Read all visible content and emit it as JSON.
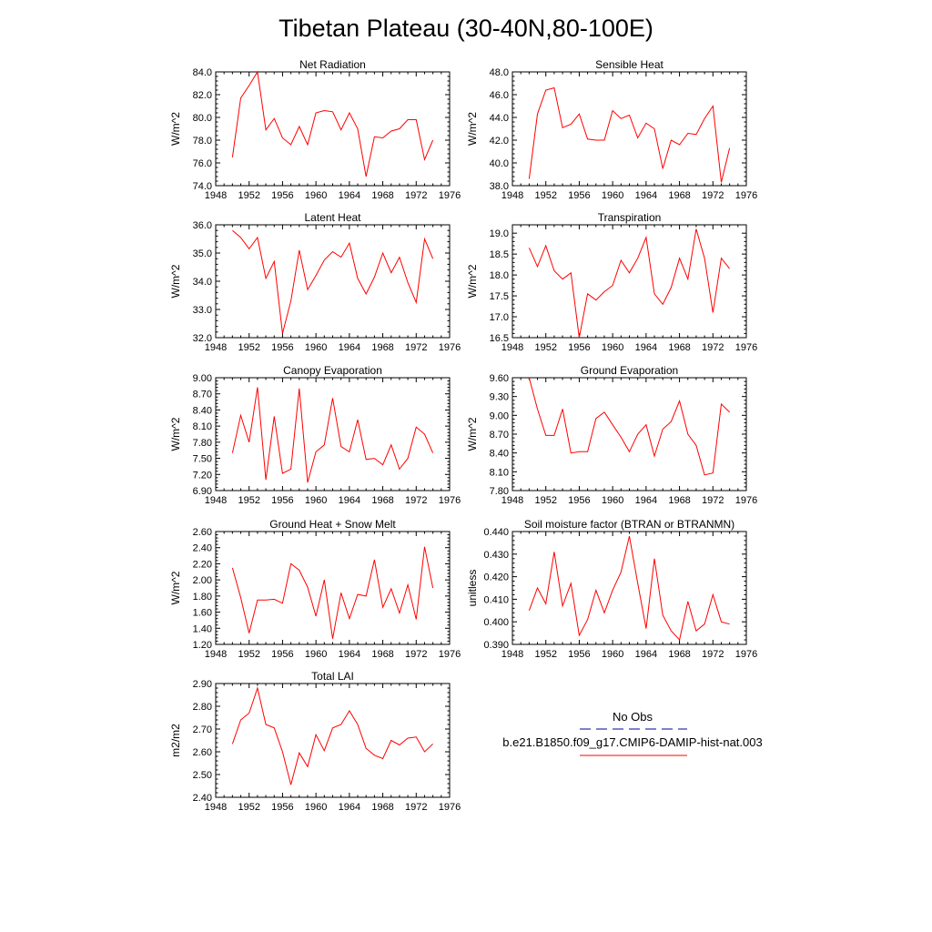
{
  "figure": {
    "title": "Tibetan Plateau (30-40N,80-100E)"
  },
  "legend": {
    "obs_label": "No Obs",
    "model_label": "b.e21.B1850.f09_g17.CMIP6-DAMIP-hist-nat.003",
    "obs_color": "#000099",
    "model_color": "#ff0000"
  },
  "chart_data": [
    {
      "type": "line",
      "title": "Net Radiation",
      "ylabel": "W/m^2",
      "xlim": [
        1948,
        1976
      ],
      "xticks": [
        1948,
        1952,
        1956,
        1960,
        1964,
        1968,
        1972,
        1976
      ],
      "ylim": [
        74.0,
        84.0
      ],
      "yticks": [
        "74.0",
        "76.0",
        "78.0",
        "80.0",
        "82.0",
        "84.0"
      ],
      "x": [
        1950,
        1951,
        1952,
        1953,
        1954,
        1955,
        1956,
        1957,
        1958,
        1959,
        1960,
        1961,
        1962,
        1963,
        1964,
        1965,
        1966,
        1967,
        1968,
        1969,
        1970,
        1971,
        1972,
        1973,
        1974
      ],
      "series": [
        {
          "values": [
            76.5,
            81.7,
            82.8,
            84.0,
            78.9,
            79.9,
            78.2,
            77.6,
            79.2,
            77.6,
            80.4,
            80.6,
            80.5,
            78.9,
            80.4,
            79.0,
            74.8,
            78.3,
            78.2,
            78.8,
            79.0,
            79.8,
            79.8,
            76.3,
            78.0
          ]
        }
      ]
    },
    {
      "type": "line",
      "title": "Sensible Heat",
      "ylabel": "W/m^2",
      "xlim": [
        1948,
        1976
      ],
      "xticks": [
        1948,
        1952,
        1956,
        1960,
        1964,
        1968,
        1972,
        1976
      ],
      "ylim": [
        38.0,
        48.0
      ],
      "yticks": [
        "38.0",
        "40.0",
        "42.0",
        "44.0",
        "46.0",
        "48.0"
      ],
      "x": [
        1950,
        1951,
        1952,
        1953,
        1954,
        1955,
        1956,
        1957,
        1958,
        1959,
        1960,
        1961,
        1962,
        1963,
        1964,
        1965,
        1966,
        1967,
        1968,
        1969,
        1970,
        1971,
        1972,
        1973,
        1974
      ],
      "series": [
        {
          "values": [
            38.6,
            44.3,
            46.4,
            46.6,
            43.1,
            43.4,
            44.3,
            42.1,
            42.0,
            42.0,
            44.6,
            43.9,
            44.2,
            42.2,
            43.5,
            43.0,
            39.5,
            42.0,
            41.6,
            42.6,
            42.5,
            43.9,
            45.0,
            38.3,
            41.3
          ]
        }
      ]
    },
    {
      "type": "line",
      "title": "Latent Heat",
      "ylabel": "W/m^2",
      "xlim": [
        1948,
        1976
      ],
      "xticks": [
        1948,
        1952,
        1956,
        1960,
        1964,
        1968,
        1972,
        1976
      ],
      "ylim": [
        32.0,
        36.0
      ],
      "yticks": [
        "32.0",
        "33.0",
        "34.0",
        "35.0",
        "36.0"
      ],
      "x": [
        1950,
        1951,
        1952,
        1953,
        1954,
        1955,
        1956,
        1957,
        1958,
        1959,
        1960,
        1961,
        1962,
        1963,
        1964,
        1965,
        1966,
        1967,
        1968,
        1969,
        1970,
        1971,
        1972,
        1973,
        1974
      ],
      "series": [
        {
          "values": [
            35.8,
            35.55,
            35.15,
            35.55,
            34.1,
            34.7,
            32.15,
            33.3,
            35.1,
            33.7,
            34.2,
            34.75,
            35.05,
            34.85,
            35.35,
            34.1,
            33.55,
            34.15,
            35.0,
            34.3,
            34.85,
            33.95,
            33.25,
            35.5,
            34.8
          ]
        }
      ]
    },
    {
      "type": "line",
      "title": "Transpiration",
      "ylabel": "W/m^2",
      "xlim": [
        1948,
        1976
      ],
      "xticks": [
        1948,
        1952,
        1956,
        1960,
        1964,
        1968,
        1972,
        1976
      ],
      "ylim": [
        16.5,
        19.2
      ],
      "yticks": [
        "16.5",
        "17.0",
        "17.5",
        "18.0",
        "18.5",
        "19.0"
      ],
      "ytickvalues": [
        16.5,
        17.0,
        17.5,
        18.0,
        18.5,
        19.0
      ],
      "x": [
        1950,
        1951,
        1952,
        1953,
        1954,
        1955,
        1956,
        1957,
        1958,
        1959,
        1960,
        1961,
        1962,
        1963,
        1964,
        1965,
        1966,
        1967,
        1968,
        1969,
        1970,
        1971,
        1972,
        1973,
        1974
      ],
      "series": [
        {
          "values": [
            18.65,
            18.2,
            18.7,
            18.1,
            17.9,
            18.05,
            16.5,
            17.55,
            17.4,
            17.6,
            17.75,
            18.35,
            18.05,
            18.4,
            18.9,
            17.55,
            17.3,
            17.7,
            18.4,
            17.9,
            19.1,
            18.4,
            17.1,
            18.4,
            18.15
          ]
        }
      ]
    },
    {
      "type": "line",
      "title": "Canopy Evaporation",
      "ylabel": "W/m^2",
      "xlim": [
        1948,
        1976
      ],
      "xticks": [
        1948,
        1952,
        1956,
        1960,
        1964,
        1968,
        1972,
        1976
      ],
      "ylim": [
        6.9,
        9.0
      ],
      "yticks": [
        "6.90",
        "7.20",
        "7.50",
        "7.80",
        "8.10",
        "8.40",
        "8.70",
        "9.00"
      ],
      "ytickvalues": [
        6.9,
        7.2,
        7.5,
        7.8,
        8.1,
        8.4,
        8.7,
        9.0
      ],
      "x": [
        1950,
        1951,
        1952,
        1953,
        1954,
        1955,
        1956,
        1957,
        1958,
        1959,
        1960,
        1961,
        1962,
        1963,
        1964,
        1965,
        1966,
        1967,
        1968,
        1969,
        1970,
        1971,
        1972,
        1973,
        1974
      ],
      "series": [
        {
          "values": [
            7.6,
            8.3,
            7.8,
            8.82,
            7.1,
            8.28,
            7.22,
            7.3,
            8.8,
            7.05,
            7.62,
            7.75,
            8.62,
            7.72,
            7.62,
            8.22,
            7.48,
            7.5,
            7.38,
            7.75,
            7.3,
            7.5,
            8.08,
            7.95,
            7.6
          ]
        }
      ]
    },
    {
      "type": "line",
      "title": "Ground Evaporation",
      "ylabel": "W/m^2",
      "xlim": [
        1948,
        1976
      ],
      "xticks": [
        1948,
        1952,
        1956,
        1960,
        1964,
        1968,
        1972,
        1976
      ],
      "ylim": [
        7.8,
        9.6
      ],
      "yticks": [
        "7.80",
        "8.10",
        "8.40",
        "8.70",
        "9.00",
        "9.30",
        "9.60"
      ],
      "ytickvalues": [
        7.8,
        8.1,
        8.4,
        8.7,
        9.0,
        9.3,
        9.6
      ],
      "x": [
        1950,
        1951,
        1952,
        1953,
        1954,
        1955,
        1956,
        1957,
        1958,
        1959,
        1960,
        1961,
        1962,
        1963,
        1964,
        1965,
        1966,
        1967,
        1968,
        1969,
        1970,
        1971,
        1972,
        1973,
        1974
      ],
      "series": [
        {
          "values": [
            9.6,
            9.1,
            8.68,
            8.68,
            9.1,
            8.4,
            8.42,
            8.42,
            8.95,
            9.05,
            8.85,
            8.65,
            8.42,
            8.7,
            8.85,
            8.35,
            8.78,
            8.9,
            9.23,
            8.7,
            8.52,
            8.05,
            8.08,
            9.18,
            9.05
          ]
        }
      ]
    },
    {
      "type": "line",
      "title": "Ground Heat + Snow Melt",
      "ylabel": "W/m^2",
      "xlim": [
        1948,
        1976
      ],
      "xticks": [
        1948,
        1952,
        1956,
        1960,
        1964,
        1968,
        1972,
        1976
      ],
      "ylim": [
        1.2,
        2.6
      ],
      "yticks": [
        "1.20",
        "1.40",
        "1.60",
        "1.80",
        "2.00",
        "2.20",
        "2.40",
        "2.60"
      ],
      "ytickvalues": [
        1.2,
        1.4,
        1.6,
        1.8,
        2.0,
        2.2,
        2.4,
        2.6
      ],
      "x": [
        1950,
        1951,
        1952,
        1953,
        1954,
        1955,
        1956,
        1957,
        1958,
        1959,
        1960,
        1961,
        1962,
        1963,
        1964,
        1965,
        1966,
        1967,
        1968,
        1969,
        1970,
        1971,
        1972,
        1973,
        1974
      ],
      "series": [
        {
          "values": [
            2.15,
            1.78,
            1.34,
            1.75,
            1.75,
            1.76,
            1.71,
            2.2,
            2.12,
            1.91,
            1.55,
            2.0,
            1.27,
            1.84,
            1.52,
            1.82,
            1.8,
            2.25,
            1.66,
            1.89,
            1.59,
            1.94,
            1.51,
            2.41,
            1.9
          ]
        }
      ]
    },
    {
      "type": "line",
      "title": "Soil moisture factor (BTRAN or BTRANMN)",
      "ylabel": "unitless",
      "xlim": [
        1948,
        1976
      ],
      "xticks": [
        1948,
        1952,
        1956,
        1960,
        1964,
        1968,
        1972,
        1976
      ],
      "ylim": [
        0.39,
        0.44
      ],
      "yticks": [
        "0.390",
        "0.400",
        "0.410",
        "0.420",
        "0.430",
        "0.440"
      ],
      "ytickvalues": [
        0.39,
        0.4,
        0.41,
        0.42,
        0.43,
        0.44
      ],
      "x": [
        1950,
        1951,
        1952,
        1953,
        1954,
        1955,
        1956,
        1957,
        1958,
        1959,
        1960,
        1961,
        1962,
        1963,
        1964,
        1965,
        1966,
        1967,
        1968,
        1969,
        1970,
        1971,
        1972,
        1973,
        1974
      ],
      "series": [
        {
          "values": [
            0.405,
            0.415,
            0.408,
            0.431,
            0.407,
            0.417,
            0.394,
            0.401,
            0.414,
            0.404,
            0.414,
            0.422,
            0.438,
            0.417,
            0.397,
            0.428,
            0.403,
            0.396,
            0.392,
            0.409,
            0.396,
            0.399,
            0.412,
            0.4,
            0.399
          ]
        }
      ]
    },
    {
      "type": "line",
      "title": "Total LAI",
      "ylabel": "m2/m2",
      "xlim": [
        1948,
        1976
      ],
      "xticks": [
        1948,
        1952,
        1956,
        1960,
        1964,
        1968,
        1972,
        1976
      ],
      "ylim": [
        2.4,
        2.9
      ],
      "yticks": [
        "2.40",
        "2.50",
        "2.60",
        "2.70",
        "2.80",
        "2.90"
      ],
      "ytickvalues": [
        2.4,
        2.5,
        2.6,
        2.7,
        2.8,
        2.9
      ],
      "x": [
        1950,
        1951,
        1952,
        1953,
        1954,
        1955,
        1956,
        1957,
        1958,
        1959,
        1960,
        1961,
        1962,
        1963,
        1964,
        1965,
        1966,
        1967,
        1968,
        1969,
        1970,
        1971,
        1972,
        1973,
        1974
      ],
      "series": [
        {
          "values": [
            2.635,
            2.74,
            2.77,
            2.88,
            2.72,
            2.705,
            2.6,
            2.455,
            2.595,
            2.535,
            2.675,
            2.605,
            2.705,
            2.72,
            2.78,
            2.72,
            2.615,
            2.585,
            2.57,
            2.65,
            2.63,
            2.66,
            2.665,
            2.6,
            2.635
          ]
        }
      ]
    }
  ]
}
